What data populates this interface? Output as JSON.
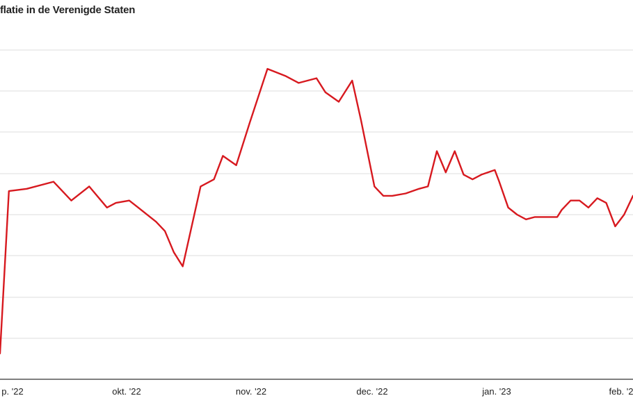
{
  "chart_data": {
    "type": "line",
    "title": "flatie in de Verenigde Staten",
    "xlabel": "",
    "ylabel": "",
    "x_tick_labels": [
      "p. '22",
      "okt. '22",
      "nov. '22",
      "dec. '22",
      "jan. '23",
      "feb. '2"
    ],
    "grid": true,
    "series_color": "#d7191f",
    "gridline_color": "#dddddd",
    "series": [
      {
        "points": [
          [
            0,
            4.66
          ],
          [
            2,
            5.35
          ],
          [
            6,
            5.36
          ],
          [
            12,
            5.39
          ],
          [
            16,
            5.31
          ],
          [
            20,
            5.37
          ],
          [
            24,
            5.28
          ],
          [
            26,
            5.3
          ],
          [
            29,
            5.31
          ],
          [
            31,
            5.28
          ],
          [
            35,
            5.22
          ],
          [
            37,
            5.18
          ],
          [
            39,
            5.09
          ],
          [
            41,
            5.03
          ],
          [
            45,
            5.37
          ],
          [
            48,
            5.4
          ],
          [
            50,
            5.5
          ],
          [
            53,
            5.46
          ],
          [
            56,
            5.64
          ],
          [
            60,
            5.87
          ],
          [
            64,
            5.84
          ],
          [
            67,
            5.81
          ],
          [
            71,
            5.83
          ],
          [
            73,
            5.77
          ],
          [
            76,
            5.73
          ],
          [
            79,
            5.82
          ],
          [
            81,
            5.65
          ],
          [
            84,
            5.37
          ],
          [
            86,
            5.33
          ],
          [
            88,
            5.33
          ],
          [
            91,
            5.34
          ],
          [
            94,
            5.36
          ],
          [
            96,
            5.37
          ],
          [
            98,
            5.52
          ],
          [
            100,
            5.43
          ],
          [
            102,
            5.52
          ],
          [
            104,
            5.42
          ],
          [
            106,
            5.4
          ],
          [
            108,
            5.42
          ],
          [
            111,
            5.44
          ],
          [
            112,
            5.39
          ],
          [
            114,
            5.28
          ],
          [
            116,
            5.25
          ],
          [
            118,
            5.23
          ],
          [
            120,
            5.24
          ],
          [
            122,
            5.24
          ],
          [
            125,
            5.24
          ],
          [
            126,
            5.27
          ],
          [
            128,
            5.31
          ],
          [
            130,
            5.31
          ],
          [
            132,
            5.28
          ],
          [
            134,
            5.32
          ],
          [
            136,
            5.3
          ],
          [
            138,
            5.2
          ],
          [
            140,
            5.25
          ],
          [
            142,
            5.33
          ]
        ]
      }
    ]
  }
}
